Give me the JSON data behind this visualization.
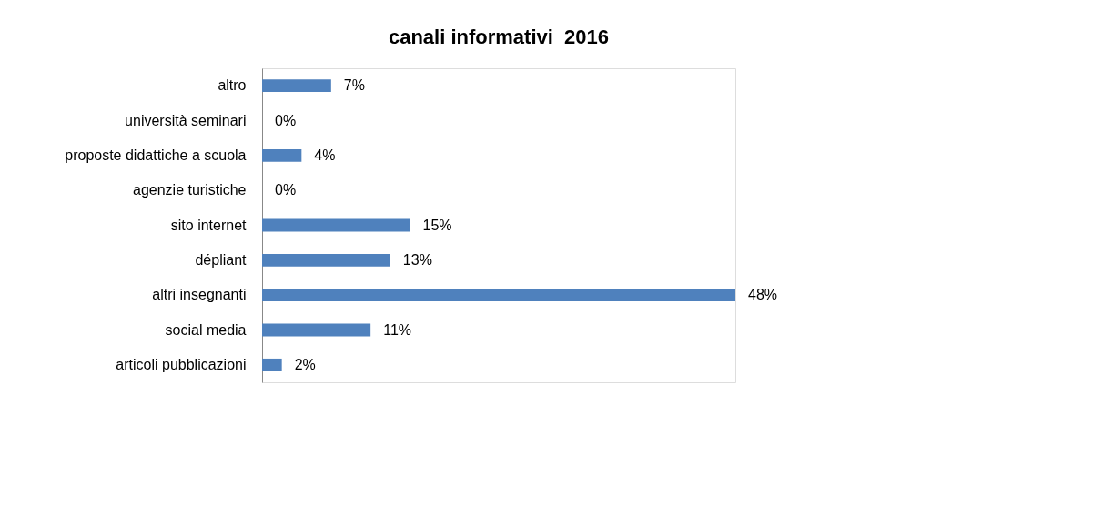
{
  "chart_data": {
    "type": "bar",
    "orientation": "horizontal",
    "title": "canali informativi_2016",
    "categories": [
      "altro",
      "università seminari",
      "proposte didattiche a scuola",
      "agenzie turistiche",
      "sito internet",
      "dépliant",
      "altri insegnanti",
      "social media",
      "articoli pubblicazioni"
    ],
    "values": [
      7,
      0,
      4,
      0,
      15,
      13,
      48,
      11,
      2
    ],
    "value_labels": [
      "7%",
      "0%",
      "4%",
      "0%",
      "15%",
      "13%",
      "48%",
      "11%",
      "2%"
    ],
    "color": "#4f81bd"
  }
}
